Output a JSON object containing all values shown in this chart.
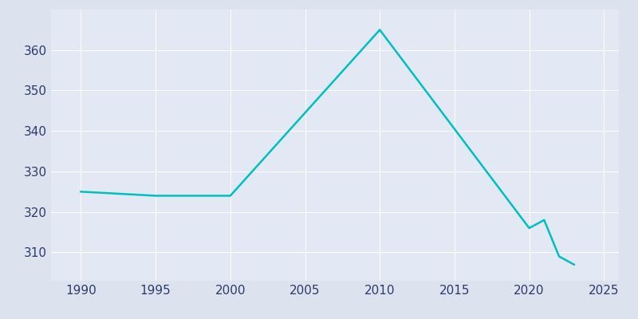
{
  "years": [
    1990,
    1995,
    2000,
    2010,
    2020,
    2021,
    2022,
    2023
  ],
  "values": [
    325,
    324,
    324,
    365,
    316,
    318,
    309,
    307
  ],
  "line_color": "#00BFBF",
  "bg_color": "#DDE3EE",
  "plot_bg_color": "#E2E8F4",
  "grid_color": "#FFFFFF",
  "xlabel": "",
  "ylabel": "",
  "xlim": [
    1988,
    2026
  ],
  "ylim": [
    303,
    370
  ],
  "xticks": [
    1990,
    1995,
    2000,
    2005,
    2010,
    2015,
    2020,
    2025
  ],
  "yticks": [
    310,
    320,
    330,
    340,
    350,
    360
  ],
  "line_width": 1.8,
  "tick_fontsize": 11,
  "tick_color": "#2D3A6B"
}
